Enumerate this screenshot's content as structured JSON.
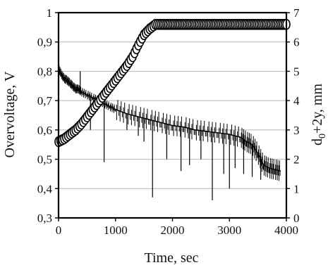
{
  "chart_data": {
    "type": "line",
    "title": "",
    "xlabel": "Time, sec",
    "ylabel_left": "Overvoltage, V",
    "ylabel_right_main": "d",
    "ylabel_right_sub": "0",
    "ylabel_right_rest": "+2y, mm",
    "xlim": [
      0,
      4000
    ],
    "ylim_left": [
      0.3,
      1.0
    ],
    "ylim_right": [
      0,
      7
    ],
    "x_ticks": [
      "0",
      "1000",
      "2000",
      "3000",
      "4000"
    ],
    "y_left_ticks": [
      "0,3",
      "0,4",
      "0,5",
      "0,6",
      "0,7",
      "0,8",
      "0,9",
      "1"
    ],
    "y_right_ticks": [
      "0",
      "1",
      "2",
      "3",
      "4",
      "5",
      "6",
      "7"
    ],
    "grid": true,
    "series": [
      {
        "axis": "left",
        "style": "line",
        "color": "#000000",
        "points": [
          [
            0,
            0.81
          ],
          [
            50,
            0.79
          ],
          [
            100,
            0.775
          ],
          [
            150,
            0.77
          ],
          [
            200,
            0.76
          ],
          [
            250,
            0.75
          ],
          [
            300,
            0.74
          ],
          [
            350,
            0.74
          ],
          [
            400,
            0.73
          ],
          [
            500,
            0.72
          ],
          [
            600,
            0.71
          ],
          [
            700,
            0.7
          ],
          [
            800,
            0.69
          ],
          [
            900,
            0.68
          ],
          [
            1000,
            0.67
          ],
          [
            1200,
            0.655
          ],
          [
            1400,
            0.645
          ],
          [
            1600,
            0.635
          ],
          [
            1800,
            0.625
          ],
          [
            2000,
            0.615
          ],
          [
            2200,
            0.61
          ],
          [
            2400,
            0.6
          ],
          [
            2600,
            0.595
          ],
          [
            2800,
            0.59
          ],
          [
            3000,
            0.585
          ],
          [
            3200,
            0.575
          ],
          [
            3300,
            0.56
          ],
          [
            3400,
            0.55
          ],
          [
            3500,
            0.52
          ],
          [
            3600,
            0.48
          ],
          [
            3700,
            0.47
          ],
          [
            3800,
            0.465
          ],
          [
            3900,
            0.46
          ]
        ],
        "dips": [
          [
            380,
            0.8
          ],
          [
            560,
            0.6
          ],
          [
            800,
            0.49
          ],
          [
            1200,
            0.6
          ],
          [
            1400,
            0.58
          ],
          [
            1500,
            0.56
          ],
          [
            1650,
            0.37
          ],
          [
            1900,
            0.5
          ],
          [
            2150,
            0.46
          ],
          [
            2300,
            0.48
          ],
          [
            2500,
            0.5
          ],
          [
            2700,
            0.36
          ],
          [
            2900,
            0.45
          ],
          [
            3000,
            0.4
          ],
          [
            3100,
            0.47
          ],
          [
            3250,
            0.45
          ],
          [
            3400,
            0.44
          ],
          [
            3550,
            0.43
          ]
        ]
      },
      {
        "axis": "right",
        "style": "markers",
        "marker": "open-circle",
        "color": "#000000",
        "points": [
          [
            0,
            2.6
          ],
          [
            100,
            2.7
          ],
          [
            200,
            2.85
          ],
          [
            300,
            3.0
          ],
          [
            400,
            3.2
          ],
          [
            500,
            3.45
          ],
          [
            600,
            3.7
          ],
          [
            700,
            3.95
          ],
          [
            800,
            4.2
          ],
          [
            900,
            4.45
          ],
          [
            1000,
            4.7
          ],
          [
            1100,
            4.95
          ],
          [
            1200,
            5.2
          ],
          [
            1300,
            5.5
          ],
          [
            1400,
            5.9
          ],
          [
            1500,
            6.25
          ],
          [
            1600,
            6.45
          ],
          [
            1700,
            6.6
          ],
          [
            1800,
            6.6
          ],
          [
            4000,
            6.6
          ]
        ]
      }
    ]
  }
}
